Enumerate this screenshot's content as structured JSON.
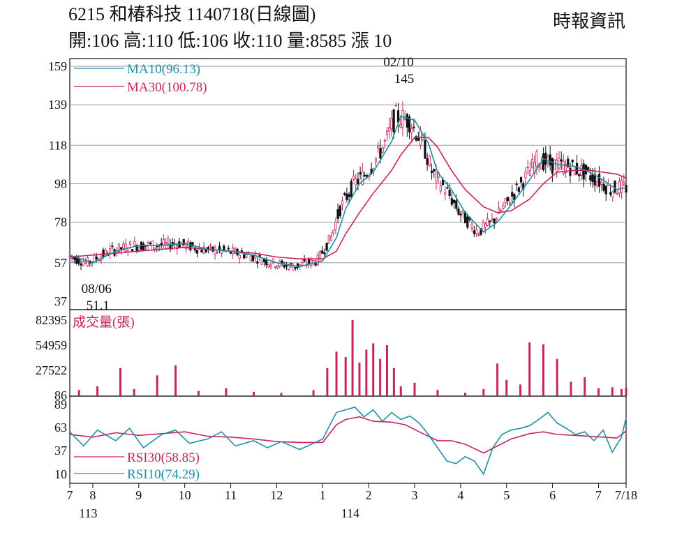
{
  "header": {
    "title": "6215 和椿科技 1140718(日線圖)",
    "ohlc": "開:106 高:110 低:106 收:110 量:8585 漲 10",
    "source": "時報資訊"
  },
  "colors": {
    "ma10": "#1f8fa6",
    "ma30": "#c8245a",
    "volume": "#c8245a",
    "rsi30": "#c8245a",
    "rsi10": "#1f8fa6",
    "candle_up": "#c8245a",
    "candle_down": "#111111",
    "grid": "#9a9a9a"
  },
  "chart_data": [
    {
      "type": "line",
      "panel": "price",
      "y_ticks": [
        "159",
        "139",
        "118",
        "98",
        "78",
        "57",
        "37"
      ],
      "ylim": [
        37,
        159
      ],
      "x_ticks": [
        "7",
        "8",
        "9",
        "10",
        "11",
        "12",
        "1",
        "2",
        "3",
        "4",
        "5",
        "6",
        "7",
        "7/18"
      ],
      "x_subticks": [
        "113",
        "114"
      ],
      "x_months": [
        7,
        7.5,
        8.5,
        9.5,
        10.5,
        11.5,
        12.5,
        13.5,
        14.5,
        15.5,
        16.5,
        17.5,
        18.5,
        19.1
      ],
      "annotations": {
        "high_date": "02/10",
        "high_value": "145",
        "high": [
          14.15,
          145
        ],
        "low_date": "08/06",
        "low_value": "51.1",
        "low": [
          7.55,
          51.1
        ]
      },
      "series": [
        {
          "name": "MA10(96.13)",
          "x": [
            7,
            7.5,
            8,
            8.5,
            9,
            9.5,
            10,
            10.5,
            11,
            11.5,
            12,
            12.5,
            12.8,
            13,
            13.3,
            13.6,
            14,
            14.2,
            14.5,
            14.8,
            15,
            15.3,
            15.6,
            16,
            16.3,
            16.6,
            17,
            17.3,
            17.6,
            18,
            18.3,
            18.6,
            18.9,
            19.1
          ],
          "values": [
            61,
            57,
            63,
            66,
            66,
            67,
            64,
            63,
            61,
            57,
            55,
            58,
            70,
            85,
            98,
            104,
            120,
            133,
            131,
            119,
            104,
            95,
            83,
            73,
            78,
            87,
            100,
            111,
            108,
            107,
            104,
            100,
            95,
            96
          ]
        },
        {
          "name": "MA30(100.78)",
          "x": [
            7,
            7.5,
            8,
            8.5,
            9,
            9.5,
            10,
            10.5,
            11,
            11.5,
            12,
            12.5,
            12.8,
            13,
            13.3,
            13.6,
            14,
            14.2,
            14.5,
            14.8,
            15,
            15.3,
            15.6,
            16,
            16.3,
            16.6,
            17,
            17.3,
            17.6,
            18,
            18.3,
            18.6,
            18.9,
            19.1
          ],
          "values": [
            60,
            61,
            62,
            63,
            64,
            65,
            64,
            63,
            62,
            60,
            59,
            59,
            63,
            72,
            83,
            93,
            105,
            113,
            122,
            122,
            117,
            105,
            95,
            86,
            83,
            84,
            90,
            98,
            104,
            105,
            105,
            104,
            103,
            101
          ]
        }
      ]
    },
    {
      "type": "bar",
      "panel": "volume",
      "title": "成交量(張)",
      "y_ticks": [
        "82395",
        "54959",
        "27522",
        "86"
      ],
      "ylim": [
        86,
        82395
      ],
      "series": [
        {
          "name": "成交量(張)",
          "x": [
            7.2,
            7.6,
            8.1,
            8.4,
            8.9,
            9.3,
            9.8,
            10.4,
            11.0,
            11.6,
            12.3,
            12.6,
            12.8,
            13.0,
            13.15,
            13.3,
            13.45,
            13.6,
            13.75,
            13.9,
            14.05,
            14.2,
            14.5,
            15.0,
            15.6,
            16.0,
            16.3,
            16.5,
            16.8,
            17.0,
            17.3,
            17.6,
            17.9,
            18.2,
            18.5,
            18.8,
            19.0,
            19.1
          ],
          "values": [
            6000,
            10000,
            30000,
            7000,
            22000,
            33000,
            5000,
            8000,
            4000,
            3000,
            6000,
            30000,
            48000,
            42000,
            82395,
            36000,
            50000,
            57000,
            40000,
            55000,
            30000,
            10000,
            14000,
            6000,
            3000,
            7000,
            35000,
            17000,
            12000,
            58000,
            56000,
            40000,
            15000,
            20000,
            8000,
            9000,
            7000,
            8585
          ]
        }
      ]
    },
    {
      "type": "line",
      "panel": "rsi",
      "y_ticks": [
        "89",
        "63",
        "37",
        "10"
      ],
      "ylim": [
        10,
        89
      ],
      "series": [
        {
          "name": "RSI30(58.85)",
          "x": [
            7,
            7.5,
            8,
            8.5,
            9,
            9.5,
            10,
            10.5,
            11,
            11.5,
            12,
            12.5,
            12.8,
            13,
            13.3,
            13.6,
            14,
            14.3,
            14.6,
            15,
            15.3,
            15.6,
            16,
            16.3,
            16.6,
            17,
            17.3,
            17.6,
            18,
            18.3,
            18.6,
            18.9,
            19.1
          ],
          "values": [
            55,
            52,
            57,
            54,
            56,
            58,
            53,
            52,
            50,
            47,
            46,
            46,
            66,
            72,
            75,
            70,
            69,
            66,
            58,
            48,
            48,
            44,
            34,
            42,
            50,
            56,
            58,
            55,
            54,
            53,
            52,
            51,
            59
          ]
        },
        {
          "name": "RSI10(74.29)",
          "x": [
            7,
            7.3,
            7.6,
            8,
            8.3,
            8.6,
            9,
            9.3,
            9.6,
            10,
            10.3,
            10.6,
            11,
            11.3,
            11.6,
            12,
            12.3,
            12.5,
            12.8,
            13,
            13.2,
            13.4,
            13.6,
            13.8,
            14,
            14.2,
            14.4,
            14.6,
            14.8,
            15,
            15.2,
            15.4,
            15.6,
            15.8,
            16,
            16.2,
            16.4,
            16.6,
            16.8,
            17,
            17.2,
            17.4,
            17.6,
            17.8,
            18,
            18.2,
            18.4,
            18.6,
            18.8,
            19,
            19.1
          ],
          "values": [
            58,
            42,
            60,
            48,
            62,
            40,
            55,
            60,
            45,
            50,
            58,
            42,
            48,
            40,
            47,
            38,
            45,
            50,
            80,
            83,
            86,
            75,
            83,
            70,
            80,
            72,
            76,
            68,
            55,
            40,
            25,
            22,
            30,
            25,
            10,
            40,
            55,
            60,
            62,
            65,
            72,
            80,
            68,
            62,
            55,
            58,
            48,
            60,
            35,
            52,
            74
          ]
        }
      ]
    }
  ],
  "labels": {
    "ma10": "MA10(96.13)",
    "ma30": "MA30(100.78)",
    "volume": "成交量(張)",
    "rsi30": "RSI30(58.85)",
    "rsi10": "RSI10(74.29)"
  }
}
